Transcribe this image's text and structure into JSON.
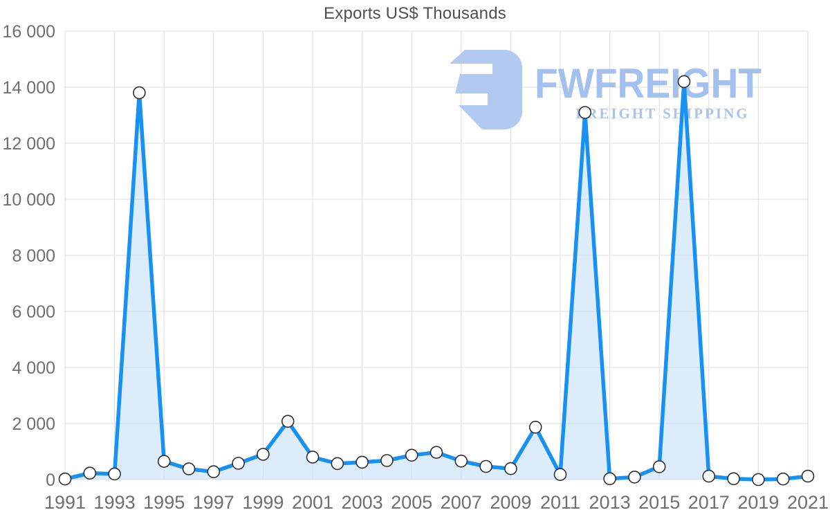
{
  "chart_data": {
    "type": "area",
    "title": "Exports US$ Thousands",
    "xlabel": "",
    "ylabel": "",
    "x": [
      1991,
      1992,
      1993,
      1994,
      1995,
      1996,
      1997,
      1998,
      1999,
      2000,
      2001,
      2002,
      2003,
      2004,
      2005,
      2006,
      2007,
      2008,
      2009,
      2010,
      2011,
      2012,
      2013,
      2014,
      2015,
      2016,
      2017,
      2018,
      2019,
      2020,
      2021
    ],
    "values": [
      20,
      230,
      200,
      13800,
      650,
      380,
      280,
      580,
      900,
      2080,
      800,
      570,
      620,
      680,
      870,
      970,
      660,
      470,
      390,
      1870,
      180,
      13100,
      30,
      90,
      460,
      14200,
      120,
      30,
      0,
      20,
      120
    ],
    "x_tick_labels": [
      "1991",
      "1993",
      "1995",
      "1997",
      "1999",
      "2001",
      "2003",
      "2005",
      "2007",
      "2009",
      "2011",
      "2013",
      "2015",
      "2017",
      "2019",
      "2021"
    ],
    "y_ticks": [
      0,
      2000,
      4000,
      6000,
      8000,
      10000,
      12000,
      14000,
      16000
    ],
    "y_tick_labels": [
      "0",
      "2 000",
      "4 000",
      "6 000",
      "8 000",
      "10 000",
      "12 000",
      "14 000",
      "16 000"
    ],
    "xlim": [
      1991,
      2021
    ],
    "ylim": [
      0,
      16000
    ],
    "grid": true,
    "legend": "none",
    "line_color": "#1791f2",
    "area_color": "rgba(199,223,248,0.6)",
    "marker_fill": "#ffffff",
    "marker_stroke": "#2e2e2e",
    "grid_color": "#e3e3e3",
    "tick_label_color": "#6f6f6f",
    "title_color": "#4f4f4f"
  },
  "watermark": {
    "brand": "FWFREIGHT",
    "tagline": "FREIGHT SHIPPING",
    "brand_color": "#a3c0ee",
    "tagline_color": "#abc3ec",
    "icon_color": "#b2c9f1"
  }
}
